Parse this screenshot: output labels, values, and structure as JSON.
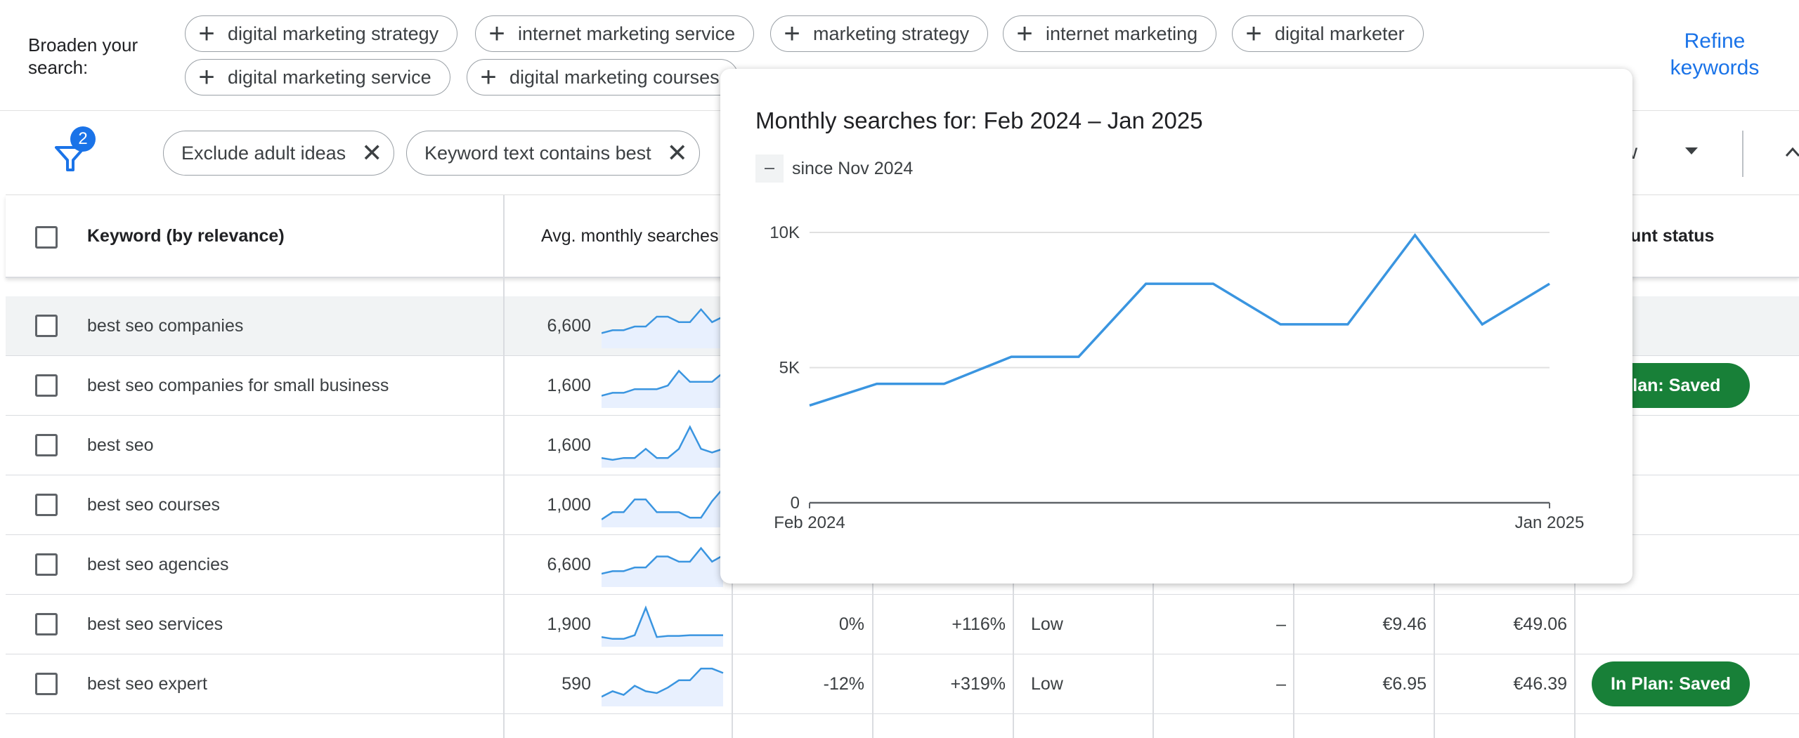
{
  "broaden": {
    "label": "Broaden your search:",
    "chips": [
      "digital marketing strategy",
      "internet marketing service",
      "marketing strategy",
      "internet marketing",
      "digital marketer",
      "digital marketing service",
      "digital marketing courses"
    ],
    "refine_label": "Refine keywords"
  },
  "filters": {
    "count": "2",
    "chips": [
      "Exclude adult ideas",
      "Keyword text contains best"
    ],
    "view_label": "view"
  },
  "table": {
    "headers": {
      "keyword": "Keyword (by relevance)",
      "avg": "Avg. monthly searches",
      "status": "unt status"
    },
    "rows": [
      {
        "keyword": "best seo companies",
        "avg": "6,600",
        "spark": [
          0.3,
          0.38,
          0.38,
          0.48,
          0.48,
          0.75,
          0.75,
          0.6,
          0.6,
          0.95,
          0.6,
          0.75
        ],
        "three_month": "",
        "yoy": "",
        "competition": "",
        "ad_share": "",
        "bid_low": "",
        "bid_high": "",
        "status": ""
      },
      {
        "keyword": "best seo companies for small business",
        "avg": "1,600",
        "spark": [
          0.22,
          0.3,
          0.3,
          0.4,
          0.4,
          0.4,
          0.5,
          0.9,
          0.6,
          0.6,
          0.6,
          0.85
        ],
        "three_month": "",
        "yoy": "",
        "competition": "",
        "ad_share": "",
        "bid_low": "",
        "bid_high": "",
        "status": "Plan: Saved"
      },
      {
        "keyword": "best seo",
        "avg": "1,600",
        "spark": [
          0.15,
          0.1,
          0.15,
          0.15,
          0.4,
          0.15,
          0.15,
          0.4,
          1.0,
          0.4,
          0.3,
          0.4
        ],
        "three_month": "",
        "yoy": "",
        "competition": "",
        "ad_share": "",
        "bid_low": "",
        "bid_high": "",
        "status": ""
      },
      {
        "keyword": "best seo courses",
        "avg": "1,000",
        "spark": [
          0.1,
          0.3,
          0.3,
          0.65,
          0.65,
          0.3,
          0.3,
          0.3,
          0.15,
          0.15,
          0.6,
          0.95
        ],
        "three_month": "",
        "yoy": "",
        "competition": "",
        "ad_share": "",
        "bid_low": "",
        "bid_high": "",
        "status": ""
      },
      {
        "keyword": "best seo agencies",
        "avg": "6,600",
        "spark": [
          0.25,
          0.32,
          0.32,
          0.42,
          0.42,
          0.72,
          0.72,
          0.58,
          0.58,
          0.95,
          0.58,
          0.75
        ],
        "three_month": "",
        "yoy": "",
        "competition": "",
        "ad_share": "",
        "bid_low": "",
        "bid_high": "",
        "status": ""
      },
      {
        "keyword": "best seo services",
        "avg": "1,900",
        "spark": [
          0.15,
          0.1,
          0.1,
          0.2,
          0.95,
          0.15,
          0.18,
          0.18,
          0.2,
          0.2,
          0.2,
          0.2
        ],
        "three_month": "0%",
        "yoy": "+116%",
        "competition": "Low",
        "ad_share": "–",
        "bid_low": "€9.46",
        "bid_high": "€49.06",
        "status": ""
      },
      {
        "keyword": "best seo expert",
        "avg": "590",
        "spark": [
          0.15,
          0.3,
          0.2,
          0.45,
          0.3,
          0.25,
          0.4,
          0.6,
          0.6,
          0.92,
          0.92,
          0.8
        ],
        "three_month": "-12%",
        "yoy": "+319%",
        "competition": "Low",
        "ad_share": "–",
        "bid_low": "€6.95",
        "bid_high": "€46.39",
        "status": "In Plan: Saved"
      }
    ]
  },
  "popup": {
    "title": "Monthly searches for: Feb 2024 – Jan 2025",
    "legend": "since Nov 2024"
  },
  "colors": {
    "accent": "#1a73e8",
    "line": "#3a95e0",
    "saved_green": "#188038"
  },
  "chart_data": {
    "type": "line",
    "x": [
      "Feb 2024",
      "Mar 2024",
      "Apr 2024",
      "May 2024",
      "Jun 2024",
      "Jul 2024",
      "Aug 2024",
      "Sep 2024",
      "Oct 2024",
      "Nov 2024",
      "Dec 2024",
      "Jan 2025"
    ],
    "series": [
      {
        "values": [
          3600,
          4400,
          4400,
          5400,
          5400,
          8100,
          8100,
          6600,
          6600,
          9900,
          6600,
          8100
        ]
      }
    ],
    "ylim": [
      0,
      10000
    ],
    "yticks": [
      "0",
      "5K",
      "10K"
    ],
    "xtick_labels": [
      "Feb 2024",
      "Jan 2025"
    ],
    "grid": true
  }
}
